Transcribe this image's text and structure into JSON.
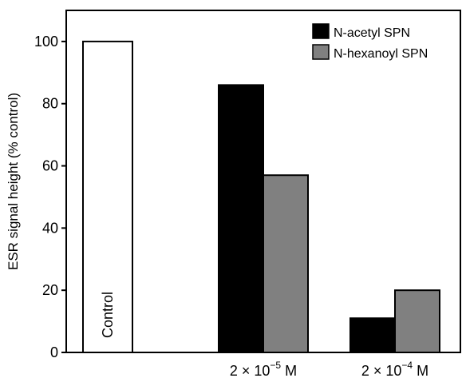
{
  "chart_data": {
    "type": "bar",
    "title": "",
    "xlabel": "",
    "ylabel": "ESR signal height (% control)",
    "ylim": [
      0,
      110
    ],
    "yticks": [
      0,
      20,
      40,
      60,
      80,
      100
    ],
    "grid": false,
    "legend_position": "top-right",
    "control": {
      "label": "Control",
      "value": 100,
      "color": "#ffffff"
    },
    "categories": [
      {
        "base": "2 × 10",
        "exp": "−5",
        "unit": " M"
      },
      {
        "base": "2 × 10",
        "exp": "−4",
        "unit": " M"
      }
    ],
    "series": [
      {
        "name": "N-acetyl SPN",
        "color": "#000000",
        "values": [
          86,
          11
        ]
      },
      {
        "name": "N-hexanoyl SPN",
        "color": "#808080",
        "values": [
          57,
          20
        ]
      }
    ]
  }
}
